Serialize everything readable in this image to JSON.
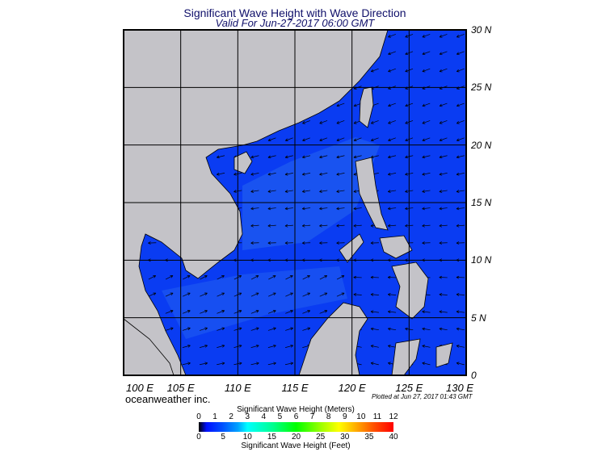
{
  "title": "Significant Wave Height with Wave Direction",
  "subtitle": "Valid For Jun-27-2017 06:00 GMT",
  "lat_labels": [
    "30 N",
    "25 N",
    "20 N",
    "15 N",
    "10 N",
    "5 N",
    "0"
  ],
  "lon_labels": [
    "100 E",
    "105 E",
    "110 E",
    "115 E",
    "120 E",
    "125 E",
    "130 E"
  ],
  "brand": "oceanweather inc.",
  "plotted": "Plotted at Jun 27, 2017 01:43 GMT",
  "colorbar": {
    "meters_title": "Significant Wave Height (Meters)",
    "feet_title": "Significant Wave Height (Feet)",
    "meters_ticks": [
      "0",
      "1",
      "2",
      "3",
      "4",
      "5",
      "6",
      "7",
      "8",
      "9",
      "10",
      "11",
      "12"
    ],
    "feet_ticks": [
      "0",
      "5",
      "10",
      "15",
      "20",
      "25",
      "30",
      "35",
      "40"
    ]
  },
  "colors": {
    "land": "#c4c3c8",
    "ocean": "#0a3cf2",
    "ocean_light": "#1f5cf0",
    "arrow": "#000000"
  },
  "extent": {
    "lon": [
      100,
      130
    ],
    "lat": [
      0,
      30
    ]
  }
}
